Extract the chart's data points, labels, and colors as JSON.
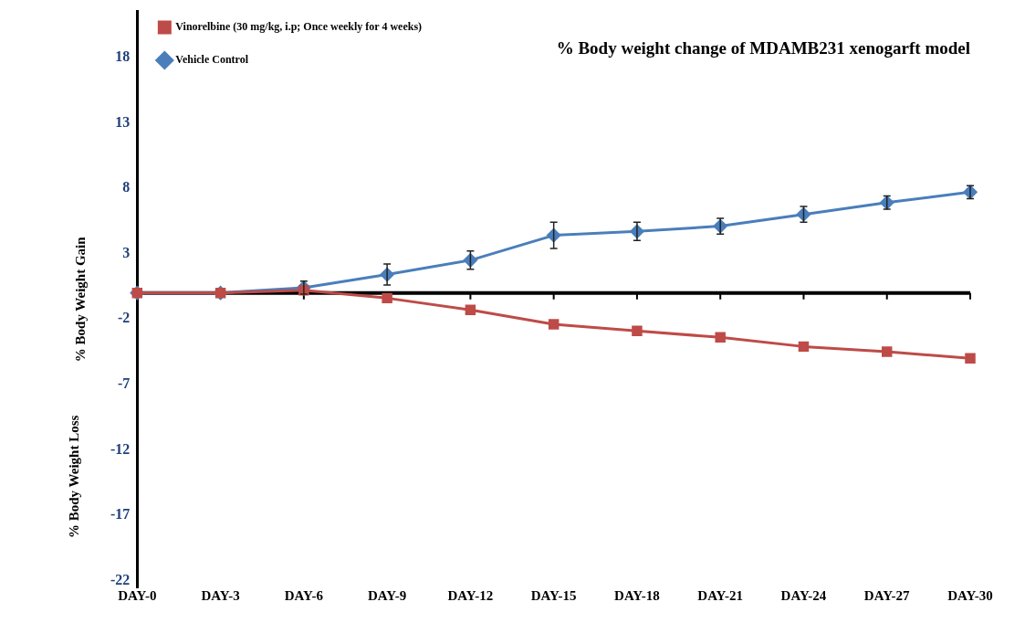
{
  "chart_data": {
    "type": "line",
    "title": "% Body weight change of MDAMB231 xenogarft model",
    "ylabel": "% Body Weight Gain",
    "annotations": [
      "% Body Weight Loss"
    ],
    "categories": [
      "DAY-0",
      "DAY-3",
      "DAY-6",
      "DAY-9",
      "DAY-12",
      "DAY-15",
      "DAY-18",
      "DAY-21",
      "DAY-24",
      "DAY-27",
      "DAY-30"
    ],
    "series": [
      {
        "name": "Vehicle Control",
        "color": "#4a7ebb",
        "marker": "diamond",
        "values": [
          0,
          0,
          0.4,
          1.4,
          2.5,
          4.4,
          4.7,
          5.1,
          6.0,
          6.9,
          7.7
        ],
        "errors": [
          null,
          null,
          0.5,
          0.8,
          0.7,
          1.0,
          0.7,
          0.6,
          0.6,
          0.5,
          0.5
        ]
      },
      {
        "name": "Vinorelbine (30 mg/kg, i.p; Once weekly for 4 weeks)",
        "color": "#be4b48",
        "marker": "square",
        "values": [
          0,
          0,
          0.2,
          -0.4,
          -1.3,
          -2.4,
          -2.9,
          -3.4,
          -4.1,
          -4.5,
          -5.0
        ]
      }
    ],
    "ylim": [
      -22.5,
      21.5
    ],
    "yticks": [
      -22,
      -17,
      -12,
      -7,
      -2,
      3,
      8,
      13,
      18
    ],
    "legend": "top left",
    "ref_lines": [
      {
        "axis": "y",
        "value": 0,
        "color": "#000000"
      }
    ]
  }
}
